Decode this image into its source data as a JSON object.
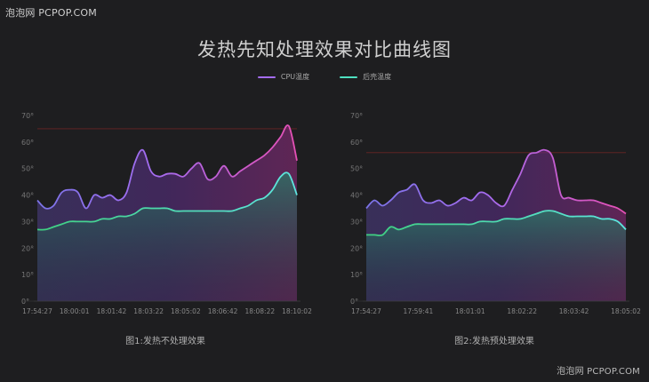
{
  "watermark_top": "泡泡网 PCPOP.COM",
  "watermark_bottom": "泡泡网 PCPOP.COM",
  "title": "发热先知处理效果对比曲线图",
  "legend": [
    {
      "label": "CPU温度",
      "color": "#a46cf0"
    },
    {
      "label": "后壳温度",
      "color": "#4fe0c0"
    }
  ],
  "chart_data": [
    {
      "type": "area",
      "caption": "图1:发热不处理效果",
      "ylim": [
        0,
        70
      ],
      "yticks": [
        "0°",
        "10°",
        "20°",
        "30°",
        "40°",
        "50°",
        "60°",
        "70°"
      ],
      "x_tick_labels": [
        "17:54:27",
        "18:00:01",
        "18:01:42",
        "18:03:22",
        "18:05:02",
        "18:06:42",
        "18:08:22",
        "18:10:02"
      ],
      "threshold": 65,
      "series": [
        {
          "name": "CPU温度",
          "values": [
            38,
            35,
            36,
            41,
            42,
            41,
            35,
            40,
            39,
            40,
            38,
            41,
            52,
            57,
            49,
            47,
            48,
            48,
            47,
            50,
            52,
            46,
            47,
            51,
            47,
            49,
            51,
            53,
            55,
            58,
            62,
            66,
            53
          ]
        },
        {
          "name": "后壳温度",
          "values": [
            27,
            27,
            28,
            29,
            30,
            30,
            30,
            30,
            31,
            31,
            32,
            32,
            33,
            35,
            35,
            35,
            35,
            34,
            34,
            34,
            34,
            34,
            34,
            34,
            34,
            35,
            36,
            38,
            39,
            42,
            47,
            48,
            40
          ]
        }
      ]
    },
    {
      "type": "area",
      "caption": "图2:发热预处理效果",
      "ylim": [
        0,
        70
      ],
      "yticks": [
        "0°",
        "10°",
        "20°",
        "30°",
        "40°",
        "50°",
        "60°",
        "70°"
      ],
      "x_tick_labels": [
        "17:54:27",
        "17:59:41",
        "18:01:01",
        "18:02:22",
        "18:03:42",
        "18:05:02"
      ],
      "threshold": 56,
      "series": [
        {
          "name": "CPU温度",
          "values": [
            35,
            38,
            36,
            38,
            41,
            42,
            44,
            38,
            37,
            38,
            36,
            37,
            39,
            38,
            41,
            40,
            37,
            36,
            42,
            48,
            55,
            56,
            57,
            54,
            40,
            39,
            38,
            38,
            38,
            37,
            36,
            35,
            33
          ]
        },
        {
          "name": "后壳温度",
          "values": [
            25,
            25,
            25,
            28,
            27,
            28,
            29,
            29,
            29,
            29,
            29,
            29,
            29,
            29,
            30,
            30,
            30,
            31,
            31,
            31,
            32,
            33,
            34,
            34,
            33,
            32,
            32,
            32,
            32,
            31,
            31,
            30,
            27
          ]
        }
      ]
    }
  ]
}
